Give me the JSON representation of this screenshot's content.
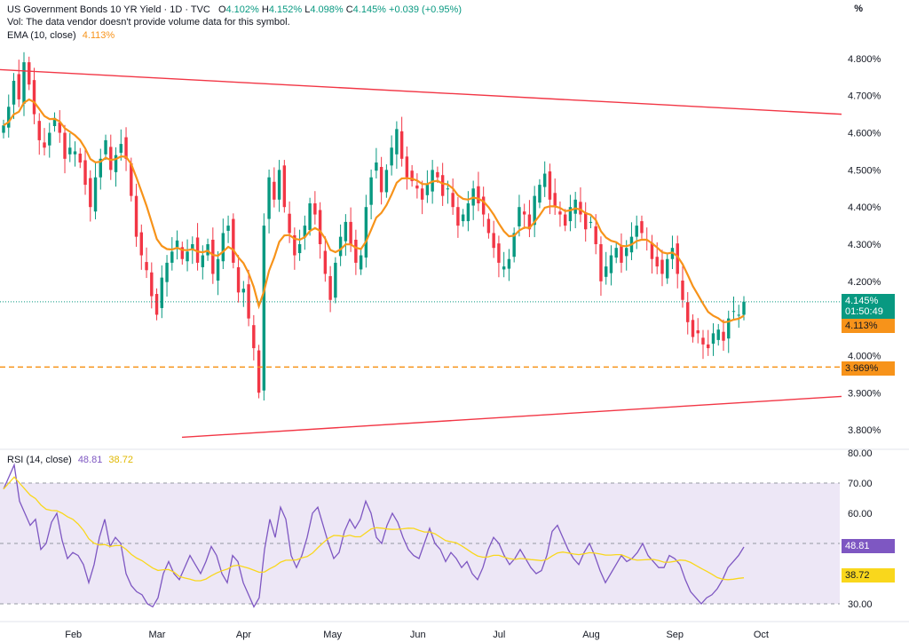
{
  "header": {
    "title": "US Government Bonds 10 YR Yield · 1D · TVC",
    "open_label": "O",
    "open": "4.102%",
    "high_label": "H",
    "high": "4.152%",
    "low_label": "L",
    "low": "4.098%",
    "close_label": "C",
    "close": "4.145%",
    "change": "+0.039 (+0.95%)",
    "vol_note": "Vol: The data vendor doesn't provide volume data for this symbol.",
    "ema_label": "EMA (10, close)",
    "ema_value": "4.113%"
  },
  "unit_label": "%",
  "rsi_header": {
    "label": "RSI (14, close)",
    "rsi_value": "48.81",
    "ma_value": "38.72"
  },
  "badges": {
    "price": "4.145%",
    "countdown": "01:50:49",
    "ema": "4.113%",
    "level": "3.969%",
    "rsi": "48.81",
    "rsi_ma": "38.72"
  },
  "colors": {
    "up": "#089981",
    "down": "#f23645",
    "ema": "#f7931a",
    "trendline": "#f23645",
    "rsi": "#7e57c2",
    "rsi_ma": "#f9d71c",
    "rsi_band": "#ede7f6"
  },
  "chart_data": [
    {
      "type": "candlestick",
      "title": "US Government Bonds 10 YR Yield",
      "ylim": [
        3.75,
        4.85
      ],
      "yticks": [
        "3.800%",
        "3.900%",
        "4.000%",
        "4.100%",
        "4.200%",
        "4.300%",
        "4.400%",
        "4.500%",
        "4.600%",
        "4.700%",
        "4.800%"
      ],
      "x_ticks": [
        "Feb",
        "Mar",
        "Apr",
        "May",
        "Jun",
        "Jul",
        "Aug",
        "Sep",
        "Oct"
      ],
      "close_series": [
        4.62,
        4.67,
        4.74,
        4.69,
        4.79,
        4.73,
        4.65,
        4.58,
        4.56,
        4.6,
        4.64,
        4.6,
        4.53,
        4.56,
        4.55,
        4.52,
        4.46,
        4.4,
        4.48,
        4.53,
        4.58,
        4.5,
        4.54,
        4.57,
        4.53,
        4.43,
        4.32,
        4.27,
        4.23,
        4.16,
        4.11,
        4.21,
        4.25,
        4.28,
        4.31,
        4.26,
        4.28,
        4.3,
        4.25,
        4.27,
        4.3,
        4.22,
        4.26,
        4.33,
        4.35,
        4.25,
        4.17,
        4.18,
        4.1,
        4.02,
        3.9,
        4.35,
        4.48,
        4.42,
        4.5,
        4.4,
        4.33,
        4.27,
        4.3,
        4.35,
        4.41,
        4.38,
        4.3,
        4.22,
        4.15,
        4.25,
        4.32,
        4.36,
        4.3,
        4.25,
        4.27,
        4.4,
        4.48,
        4.52,
        4.44,
        4.5,
        4.56,
        4.61,
        4.53,
        4.48,
        4.47,
        4.45,
        4.42,
        4.46,
        4.5,
        4.48,
        4.43,
        4.45,
        4.4,
        4.35,
        4.38,
        4.41,
        4.45,
        4.41,
        4.38,
        4.33,
        4.29,
        4.25,
        4.24,
        4.26,
        4.33,
        4.4,
        4.38,
        4.34,
        4.43,
        4.46,
        4.49,
        4.42,
        4.4,
        4.38,
        4.35,
        4.4,
        4.42,
        4.38,
        4.34,
        4.36,
        4.3,
        4.2,
        4.24,
        4.27,
        4.29,
        4.25,
        4.29,
        4.32,
        4.35,
        4.33,
        4.31,
        4.26,
        4.24,
        4.22,
        4.26,
        4.29,
        4.22,
        4.15,
        4.09,
        4.05,
        4.06,
        4.03,
        4.02,
        4.06,
        4.07,
        4.04,
        4.1,
        4.12,
        4.11,
        4.145
      ],
      "ema_label": "EMA (10, close)",
      "ema_last": 4.113,
      "level_line": 3.969,
      "trendline_upper": [
        {
          "x": 0,
          "y": 4.77
        },
        {
          "x": 1,
          "y": 4.65
        }
      ],
      "trendline_lower": [
        {
          "x": 0,
          "y": 3.78
        },
        {
          "x": 1,
          "y": 3.89
        }
      ]
    },
    {
      "type": "line",
      "title": "RSI (14, close)",
      "ylim": [
        30,
        80
      ],
      "yticks": [
        "30.00",
        "40.00",
        "50.00",
        "60.00",
        "70.00",
        "80.00"
      ],
      "band": [
        30,
        70
      ],
      "midline": 50,
      "series": [
        {
          "name": "RSI",
          "last": 48.81,
          "values": [
            68,
            72,
            76,
            64,
            60,
            56,
            58,
            48,
            50,
            57,
            60,
            51,
            45,
            47,
            46,
            43,
            37,
            43,
            52,
            58,
            49,
            52,
            50,
            40,
            36,
            34,
            33,
            30,
            29,
            32,
            40,
            44,
            40,
            38,
            42,
            46,
            43,
            40,
            44,
            49,
            46,
            40,
            37,
            46,
            44,
            37,
            33,
            29,
            32,
            48,
            58,
            52,
            62,
            58,
            46,
            42,
            46,
            52,
            60,
            62,
            56,
            50,
            45,
            47,
            54,
            58,
            55,
            58,
            64,
            60,
            52,
            50,
            56,
            60,
            57,
            52,
            48,
            46,
            45,
            50,
            55,
            50,
            48,
            44,
            47,
            45,
            42,
            44,
            40,
            38,
            42,
            48,
            52,
            50,
            46,
            43,
            45,
            48,
            45,
            42,
            40,
            41,
            46,
            54,
            56,
            52,
            48,
            45,
            43,
            47,
            50,
            46,
            41,
            37,
            40,
            43,
            46,
            44,
            45,
            47,
            50,
            46,
            44,
            42,
            42,
            46,
            45,
            43,
            38,
            34,
            32,
            30,
            32,
            33,
            35,
            38,
            42,
            44,
            46,
            48.81
          ]
        },
        {
          "name": "RSI-based MA",
          "last": 38.72
        }
      ]
    }
  ]
}
